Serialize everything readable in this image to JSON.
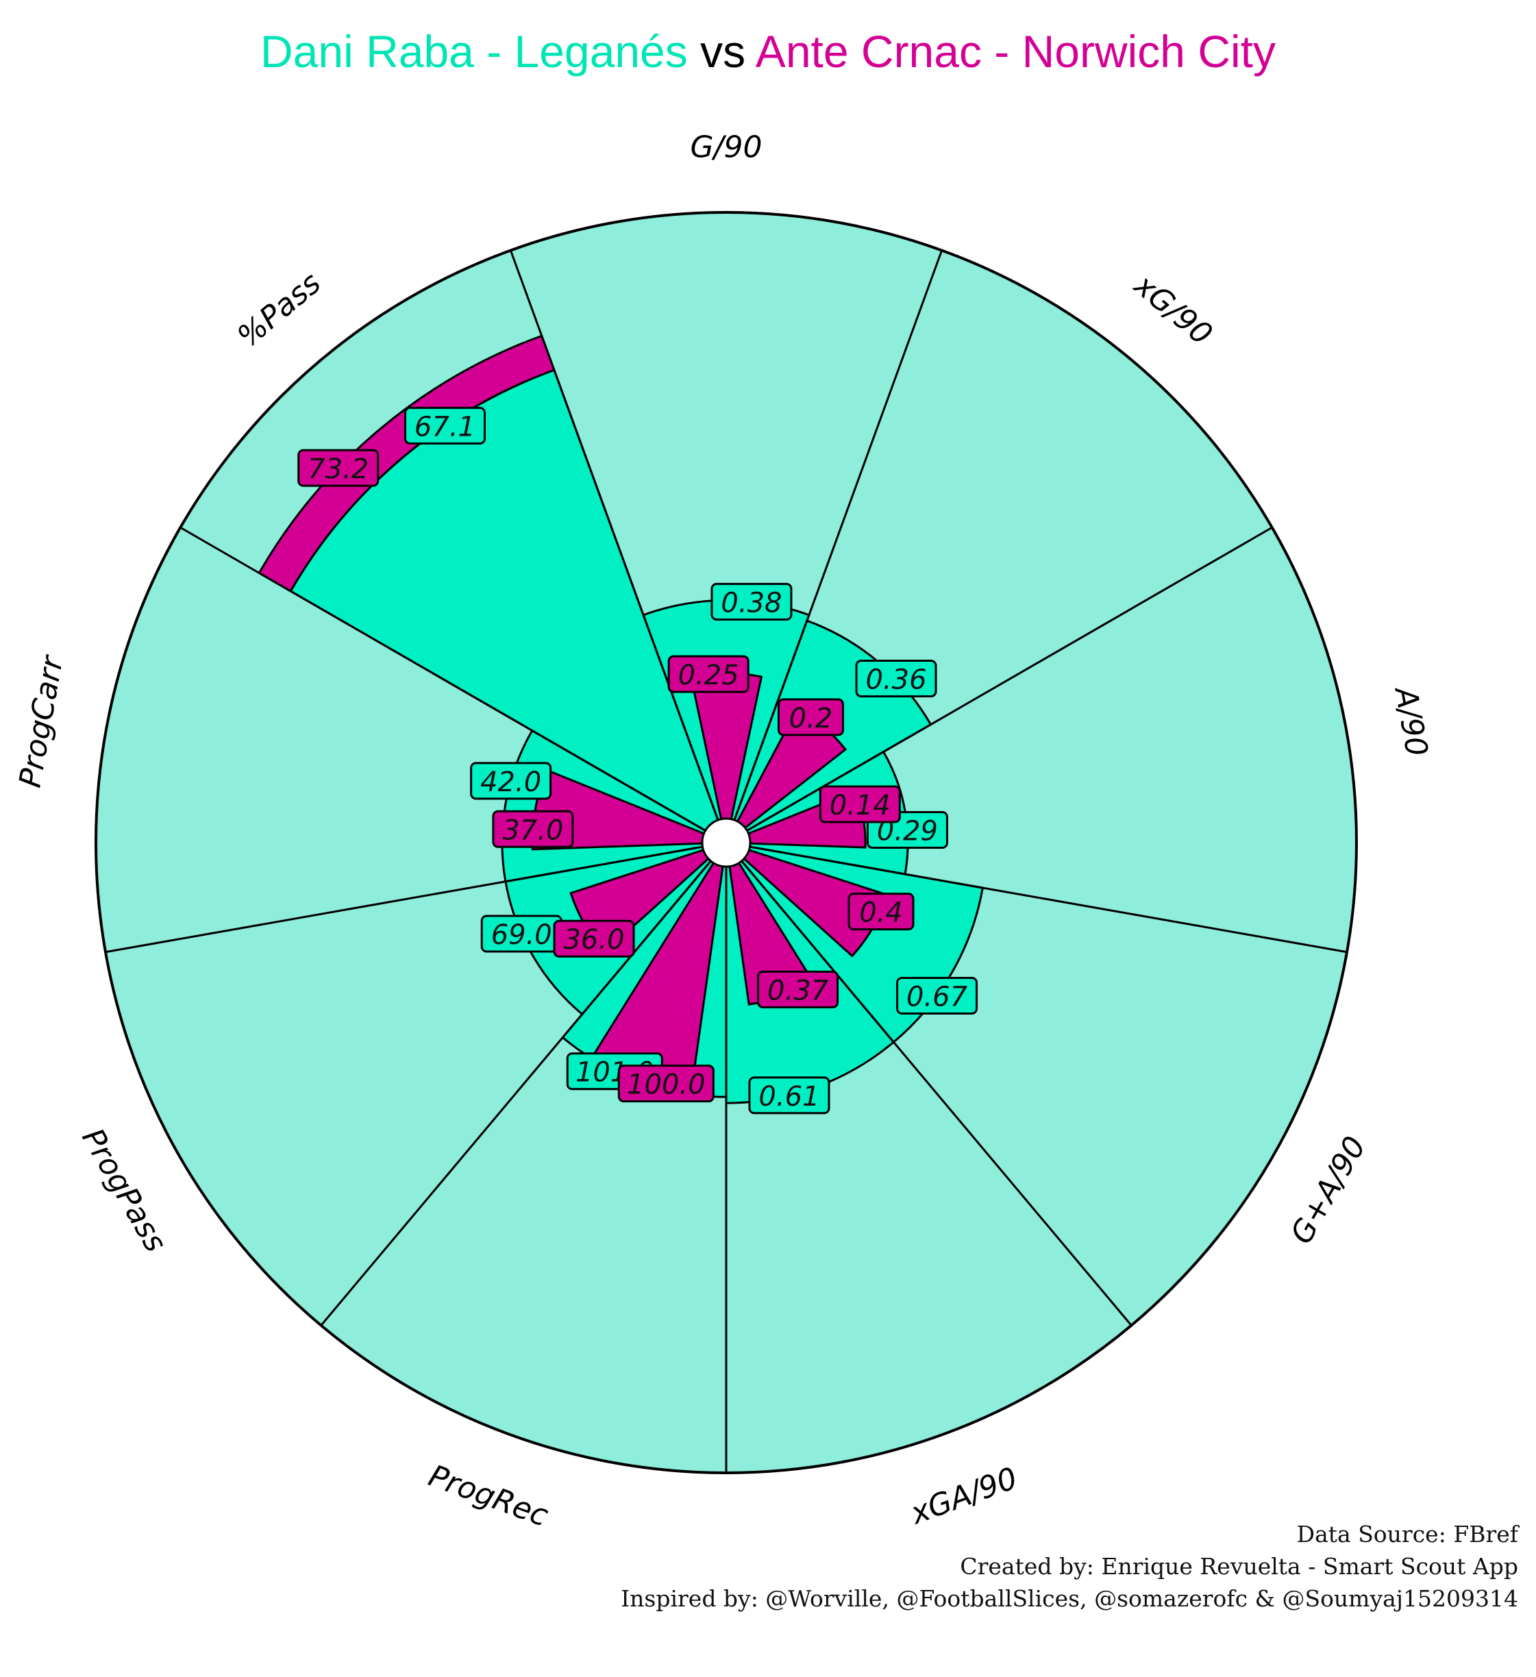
{
  "title": {
    "player1": "Dani Raba - Leganés",
    "vs": "vs",
    "player2": "Ante Crnac - Norwich City"
  },
  "credits": {
    "source": "Data Source: FBref",
    "created": "Created by: Enrique Revuelta - Smart Scout App",
    "inspired": "Inspired by: @Worville, @FootballSlices, @somazerofc & @Soumyaj15209314"
  },
  "colors": {
    "player1": "#00f0c4",
    "player2": "#d40094",
    "background_slice": "#8eeddb",
    "outline": "#000000"
  },
  "chart_data": {
    "type": "radar-polar-bar",
    "params": [
      "G/90",
      "xG/90",
      "A/90",
      "G+A/90",
      "xGA/90",
      "ProgRec",
      "ProgPass",
      "ProgCarr",
      "%Pass"
    ],
    "series": [
      {
        "name": "Dani Raba - Leganés",
        "labels": [
          "0.38",
          "0.36",
          "0.29",
          "0.67",
          "0.61",
          "101.0",
          "69.0",
          "42.0",
          "67.1"
        ],
        "values": [
          0.38,
          0.36,
          0.29,
          0.67,
          0.61,
          101.0,
          69.0,
          42.0,
          67.1
        ],
        "radius_fraction": [
          0.36,
          0.35,
          0.26,
          0.39,
          0.39,
          0.38,
          0.33,
          0.33,
          0.79
        ]
      },
      {
        "name": "Ante Crnac - Norwich City",
        "labels": [
          "0.25",
          "0.2",
          "0.14",
          "0.4",
          "0.37",
          "100.0",
          "36.0",
          "37.0",
          "73.2"
        ],
        "values": [
          0.25,
          0.2,
          0.14,
          0.4,
          0.37,
          100.0,
          36.0,
          37.0,
          73.2
        ],
        "radius_fraction": [
          0.24,
          0.21,
          0.19,
          0.24,
          0.23,
          0.37,
          0.23,
          0.28,
          0.85
        ]
      }
    ]
  }
}
